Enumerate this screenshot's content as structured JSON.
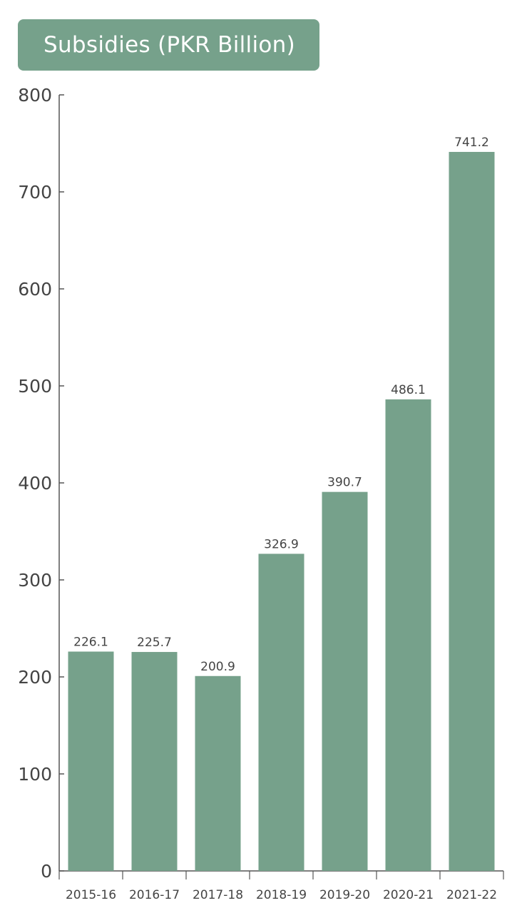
{
  "chart_data": {
    "type": "bar",
    "title": "Subsidies (PKR Billion)",
    "xlabel": "",
    "ylabel": "",
    "categories": [
      "2015-16",
      "2016-17",
      "2017-18",
      "2018-19",
      "2019-20",
      "2020-21",
      "2021-22"
    ],
    "values": [
      226.1,
      225.7,
      200.9,
      326.9,
      390.7,
      486.1,
      741.2
    ],
    "value_labels": [
      "226.1",
      "225.7",
      "200.9",
      "326.9",
      "390.7",
      "486.1",
      "741.2"
    ],
    "ylim": [
      0,
      800
    ],
    "yticks": [
      0,
      100,
      200,
      300,
      400,
      500,
      600,
      700,
      800
    ],
    "ytick_labels": [
      "0",
      "100",
      "200",
      "300",
      "400",
      "500",
      "600",
      "700",
      "800"
    ],
    "grid": false,
    "legend": "none"
  },
  "colors": {
    "bar": "#76a18b",
    "title_background": "#76a18b",
    "axis": "#555555",
    "text": "#444444"
  }
}
